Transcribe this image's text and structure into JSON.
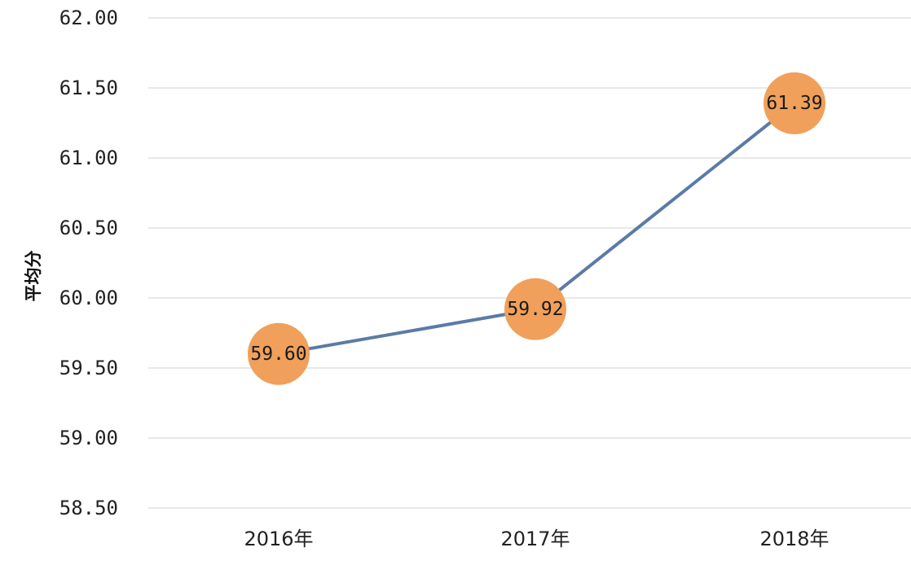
{
  "chart_data": {
    "type": "line",
    "title": "",
    "xlabel": "",
    "ylabel": "平均分",
    "categories": [
      "2016年",
      "2017年",
      "2018年"
    ],
    "values": [
      59.6,
      59.92,
      61.39
    ],
    "data_labels": [
      "59.60",
      "59.92",
      "61.39"
    ],
    "yticks": [
      "62.00",
      "61.50",
      "61.00",
      "60.50",
      "60.00",
      "59.50",
      "59.00",
      "58.50"
    ],
    "ylim": [
      58.5,
      62.0
    ],
    "grid": true,
    "legend": "none",
    "colors": {
      "line": "#5b7ba6",
      "marker": "#f0a05a",
      "grid": "#d9d9d9"
    }
  }
}
